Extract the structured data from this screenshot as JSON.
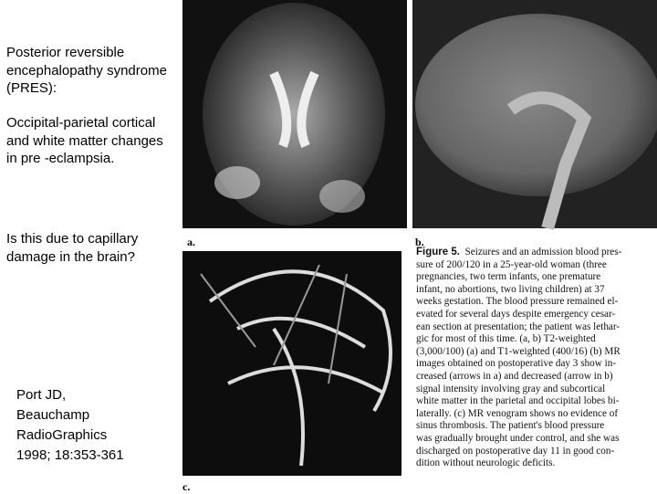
{
  "left_text": {
    "heading": "Posterior reversible encephalopathy syndrome (PRES):",
    "finding": "Occipital-parietal cortical and white matter changes in pre -eclampsia.",
    "question": "Is this due to capillary damage in the brain?"
  },
  "citation": {
    "lines": [
      "Port JD,",
      "Beauchamp",
      "RadioGraphics",
      "1998; 18:353-361"
    ]
  },
  "panels": {
    "a": "a.",
    "b": "b.",
    "c": "c."
  },
  "caption": {
    "label": "Figure 5.",
    "lines": [
      "Seizures and an admission blood pres-",
      "sure of 200/120 in a 25-year-old woman (three",
      "pregnancies, two term infants, one premature",
      "infant, no abortions, two living children) at 37",
      "weeks gestation. The blood pressure remained el-",
      "evated for several days despite emergency cesar-",
      "ean section at presentation; the patient was lethar-",
      "gic for most of this time. (a, b) T2-weighted",
      "(3,000/100) (a) and T1-weighted (400/16) (b) MR",
      "images obtained on postoperative day 3 show in-",
      "creased (arrows in a) and decreased (arrow in b)",
      "signal intensity involving gray and subcortical",
      "white matter in the parietal and occipital lobes bi-",
      "laterally. (c) MR venogram shows no evidence of",
      "sinus thrombosis. The patient's blood pressure",
      "was gradually brought under control, and she was",
      "discharged on postoperative day 11 in good con-",
      "dition without neurologic deficits."
    ]
  }
}
